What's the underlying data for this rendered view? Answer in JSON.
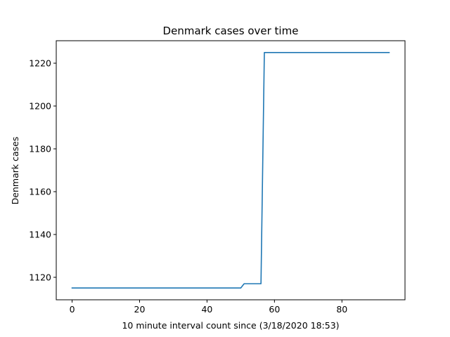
{
  "chart_data": {
    "type": "line",
    "title": "Denmark cases over time",
    "xlabel": "10 minute interval count since (3/18/2020 18:53)",
    "ylabel": "Denmark cases",
    "xlim": [
      -4.7,
      98.7
    ],
    "ylim": [
      1109.5,
      1230.5
    ],
    "xticks": [
      0,
      20,
      40,
      60,
      80
    ],
    "yticks": [
      1120,
      1140,
      1160,
      1180,
      1200,
      1220
    ],
    "grid": false,
    "line_color": "#1f77b4",
    "series": [
      {
        "x": [
          0,
          50,
          51,
          56,
          57,
          94
        ],
        "y": [
          1115,
          1115,
          1117,
          1117,
          1225,
          1225
        ]
      }
    ]
  }
}
